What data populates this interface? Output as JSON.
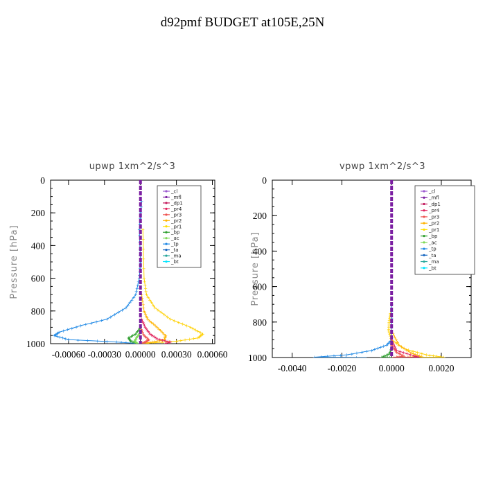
{
  "title": "d92pmf  BUDGET at105E,25N",
  "legend_labels": [
    "_cl",
    "_mfl",
    "_dp1",
    "_pr4",
    "_pr3",
    "_pr2",
    "_pr1",
    "_bp",
    "_ac",
    "_tp",
    "_ta",
    "_ma",
    "_bt"
  ],
  "legend_colors": [
    "#9b59d0",
    "#7b1fa2",
    "#c2185b",
    "#e0245e",
    "#ef5350",
    "#ffb300",
    "#ffe000",
    "#2e9e2e",
    "#7ed957",
    "#1e88e5",
    "#1565c0",
    "#26a69a",
    "#00e5ff"
  ],
  "chart_data": [
    {
      "type": "line",
      "title": "upwp   1xm^2/s^3",
      "ylabel": "Pressure [hPa]",
      "xlabel": "",
      "xlim": [
        -0.00075,
        0.00062
      ],
      "ylim": [
        1000,
        0
      ],
      "x_ticks": [
        -0.0006,
        -0.0003,
        0.0,
        0.0003,
        0.0006
      ],
      "x_tick_labels": [
        "-0.00060",
        "-0.00030",
        "0.00000",
        "0.00030",
        "0.00060"
      ],
      "y_ticks": [
        0,
        200,
        400,
        600,
        800,
        1000
      ],
      "y_tick_labels": [
        "0",
        "200",
        "400",
        "600",
        "800",
        "1000"
      ],
      "series": [
        {
          "name": "_tp",
          "color": "#1e88e5",
          "points": [
            [
              1e-05,
              130
            ],
            [
              -1e-05,
              300
            ],
            [
              0.0,
              500
            ],
            [
              -1e-05,
              600
            ],
            [
              -4e-05,
              700
            ],
            [
              -0.00012,
              780
            ],
            [
              -0.00028,
              850
            ],
            [
              -0.0005,
              890
            ],
            [
              -0.00068,
              930
            ],
            [
              -0.00072,
              950
            ],
            [
              -0.0006,
              975
            ],
            [
              -0.0002,
              990
            ],
            [
              0.0,
              1000
            ]
          ]
        },
        {
          "name": "_pr1",
          "color": "#ffd000",
          "points": [
            [
              2e-05,
              300
            ],
            [
              3e-05,
              600
            ],
            [
              5e-05,
              700
            ],
            [
              0.00012,
              780
            ],
            [
              0.00025,
              850
            ],
            [
              0.00042,
              900
            ],
            [
              0.00052,
              940
            ],
            [
              0.00048,
              965
            ],
            [
              0.0003,
              985
            ],
            [
              0.0,
              1000
            ]
          ]
        },
        {
          "name": "_pr2",
          "color": "#ffb300",
          "points": [
            [
              1e-05,
              700
            ],
            [
              3e-05,
              800
            ],
            [
              6e-05,
              850
            ],
            [
              0.00014,
              900
            ],
            [
              0.00021,
              950
            ],
            [
              0.0002,
              975
            ],
            [
              0.0001,
              990
            ],
            [
              0.0,
              1000
            ]
          ]
        },
        {
          "name": "_pr4",
          "color": "#e0245e",
          "points": [
            [
              1e-05,
              850
            ],
            [
              4e-05,
              900
            ],
            [
              8e-05,
              940
            ],
            [
              0.00014,
              970
            ],
            [
              0.00025,
              990
            ],
            [
              0.0002,
              1000
            ]
          ]
        },
        {
          "name": "_pr3",
          "color": "#ef5350",
          "points": [
            [
              0.0,
              900
            ],
            [
              3e-05,
              950
            ],
            [
              7e-05,
              975
            ],
            [
              4e-05,
              990
            ],
            [
              0.0,
              1000
            ]
          ]
        },
        {
          "name": "_bp",
          "color": "#2e9e2e",
          "points": [
            [
              0.0,
              900
            ],
            [
              -4e-05,
              940
            ],
            [
              -0.0001,
              965
            ],
            [
              -8e-05,
              985
            ],
            [
              -2e-05,
              1000
            ]
          ]
        },
        {
          "name": "_ac",
          "color": "#7ed957",
          "points": [
            [
              0.0,
              930
            ],
            [
              -3e-05,
              960
            ],
            [
              -5e-05,
              985
            ],
            [
              -2e-05,
              1000
            ]
          ]
        },
        {
          "name": "_mfl",
          "color": "#7b1fa2",
          "points": [
            [
              0.0,
              0
            ],
            [
              0.0,
              1000
            ]
          ]
        }
      ]
    },
    {
      "type": "line",
      "title": "vpwp   1xm^2/s^3",
      "ylabel": "Pressure [hPa]",
      "xlabel": "",
      "xlim": [
        -0.0048,
        0.0032
      ],
      "ylim": [
        1000,
        0
      ],
      "x_ticks": [
        -0.004,
        -0.002,
        0.0,
        0.002
      ],
      "x_tick_labels": [
        "-0.0040",
        "-0.0020",
        "0.0000",
        "0.0020"
      ],
      "y_ticks": [
        0,
        200,
        400,
        600,
        800,
        1000
      ],
      "y_tick_labels": [
        "0",
        "200",
        "400",
        "600",
        "800",
        "1000"
      ],
      "series": [
        {
          "name": "_tp",
          "color": "#1e88e5",
          "points": [
            [
              0.0,
              700
            ],
            [
              0.0,
              900
            ],
            [
              -0.0002,
              930
            ],
            [
              -0.0008,
              960
            ],
            [
              -0.0018,
              985
            ],
            [
              -0.0031,
              998
            ],
            [
              -0.001,
              1000
            ]
          ]
        },
        {
          "name": "_pr1",
          "color": "#ffd000",
          "points": [
            [
              -5e-05,
              750
            ],
            [
              -0.0001,
              800
            ],
            [
              -0.00012,
              850
            ],
            [
              0.0,
              900
            ],
            [
              0.0005,
              950
            ],
            [
              0.0014,
              985
            ],
            [
              0.0021,
              998
            ],
            [
              0.0,
              1000
            ]
          ]
        },
        {
          "name": "_pr2",
          "color": "#ffb300",
          "points": [
            [
              0.0,
              850
            ],
            [
              0.0003,
              930
            ],
            [
              0.0008,
              975
            ],
            [
              0.0012,
              995
            ],
            [
              0.0,
              1000
            ]
          ]
        },
        {
          "name": "_pr4",
          "color": "#e0245e",
          "points": [
            [
              0.0,
              900
            ],
            [
              0.0002,
              960
            ],
            [
              0.0009,
              990
            ],
            [
              0.0011,
              998
            ],
            [
              0.0,
              1000
            ]
          ]
        },
        {
          "name": "_pr3",
          "color": "#ef5350",
          "points": [
            [
              0.0,
              930
            ],
            [
              0.0002,
              970
            ],
            [
              0.0005,
              992
            ],
            [
              0.0,
              1000
            ]
          ]
        },
        {
          "name": "_bp",
          "color": "#2e9e2e",
          "points": [
            [
              0.0,
              950
            ],
            [
              -0.0001,
              980
            ],
            [
              -0.0004,
              998
            ],
            [
              0.0,
              1000
            ]
          ]
        },
        {
          "name": "_mfl",
          "color": "#7b1fa2",
          "points": [
            [
              0.0,
              0
            ],
            [
              0.0,
              1000
            ]
          ]
        }
      ]
    }
  ]
}
